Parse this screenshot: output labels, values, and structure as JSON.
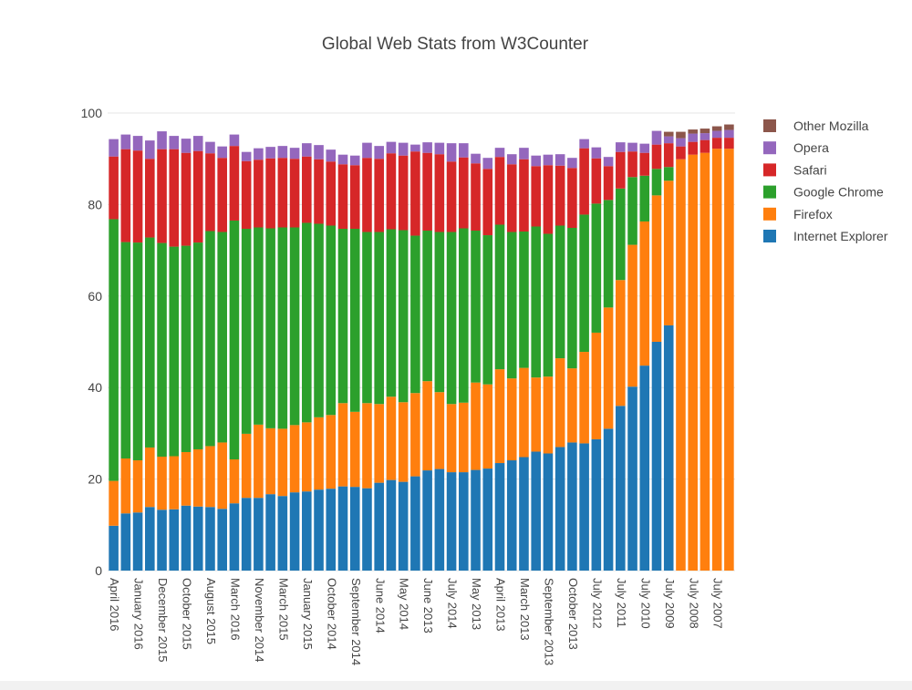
{
  "chart_data": {
    "type": "bar",
    "stacked": true,
    "title": "Global Web Stats from W3Counter",
    "xlabel": "",
    "ylabel": "",
    "ylim": [
      0,
      100
    ],
    "yticks": [
      0,
      20,
      40,
      60,
      80,
      100
    ],
    "grid": true,
    "legend_position": "top-right",
    "x_tick_labels": [
      "April 2016",
      "January 2016",
      "December 2015",
      "October 2015",
      "August 2015",
      "March 2016",
      "November 2014",
      "March 2015",
      "January 2015",
      "October 2014",
      "September 2014",
      "June 2014",
      "May 2014",
      "June 2013",
      "July 2014",
      "May 2013",
      "April 2013",
      "March 2013",
      "September 2013",
      "October 2013",
      "July 2012",
      "July 2011",
      "July 2010",
      "July 2009",
      "July 2008",
      "July 2007"
    ],
    "x_tick_positions": [
      0,
      2,
      4,
      6,
      8,
      10,
      12,
      14,
      16,
      18,
      20,
      22,
      24,
      26,
      28,
      30,
      32,
      34,
      36,
      38,
      40,
      42,
      44,
      46,
      48,
      50
    ],
    "bar_count": 52,
    "legend_order": [
      "Other Mozilla",
      "Opera",
      "Safari",
      "Google Chrome",
      "Firefox",
      "Internet Explorer"
    ],
    "series": [
      {
        "name": "Internet Explorer",
        "color": "#1f77b4",
        "values": [
          9.8,
          12.5,
          12.7,
          13.9,
          13.3,
          13.4,
          14.2,
          14.0,
          13.9,
          13.5,
          14.7,
          15.9,
          15.9,
          16.7,
          16.3,
          17.1,
          17.3,
          17.7,
          17.9,
          18.4,
          18.3,
          18.0,
          19.2,
          19.8,
          19.4,
          20.6,
          21.9,
          22.2,
          21.5,
          21.5,
          22.0,
          22.3,
          23.5,
          24.1,
          24.8,
          26.0,
          25.6,
          27.0,
          28.0,
          27.8,
          28.7,
          31.0,
          36.0,
          40.2,
          44.8,
          50.0,
          53.6,
          0,
          0,
          0,
          0,
          0
        ]
      },
      {
        "name": "Firefox",
        "color": "#ff7f0e",
        "values": [
          9.8,
          12.0,
          11.4,
          13.0,
          11.6,
          11.6,
          11.7,
          12.5,
          13.3,
          14.5,
          9.6,
          14.0,
          16.0,
          14.4,
          14.7,
          14.7,
          15.1,
          15.8,
          16.1,
          18.2,
          16.4,
          18.6,
          17.2,
          18.2,
          17.4,
          18.2,
          19.5,
          16.8,
          14.9,
          15.2,
          19.1,
          18.4,
          20.5,
          17.9,
          19.5,
          16.2,
          16.8,
          19.4,
          16.2,
          20.0,
          23.3,
          26.5,
          27.5,
          31.0,
          31.5,
          32.0,
          31.6,
          89.9,
          90.9,
          91.3,
          92.2,
          92.2
        ]
      },
      {
        "name": "Google Chrome",
        "color": "#2ca02c",
        "values": [
          57.2,
          47.3,
          47.6,
          45.9,
          46.7,
          45.8,
          45.1,
          45.2,
          47.0,
          46.0,
          52.2,
          44.8,
          43.1,
          43.7,
          44.0,
          43.2,
          43.6,
          42.3,
          41.4,
          38.1,
          40.0,
          37.4,
          37.6,
          36.6,
          37.6,
          34.4,
          32.9,
          35.0,
          37.6,
          38.1,
          33.2,
          32.6,
          31.6,
          32.0,
          29.8,
          33.0,
          31.2,
          29.0,
          30.7,
          30.0,
          28.2,
          23.5,
          20.0,
          14.8,
          10.0,
          5.8,
          3.0,
          0,
          0,
          0,
          0,
          0
        ]
      },
      {
        "name": "Safari",
        "color": "#d62728",
        "values": [
          13.7,
          20.3,
          20.1,
          17.2,
          20.5,
          21.3,
          20.3,
          20.0,
          17.0,
          16.2,
          16.3,
          14.8,
          14.8,
          15.3,
          15.2,
          15.0,
          14.5,
          14.1,
          14.0,
          14.1,
          13.9,
          16.2,
          16.0,
          16.6,
          16.3,
          18.4,
          17.0,
          17.0,
          15.4,
          15.5,
          14.7,
          14.5,
          14.8,
          14.8,
          15.8,
          13.2,
          15.0,
          13.1,
          13.1,
          14.5,
          9.9,
          7.4,
          8.0,
          5.6,
          5.0,
          5.3,
          5.2,
          2.8,
          2.8,
          2.8,
          2.4,
          2.4
        ]
      },
      {
        "name": "Opera",
        "color": "#9467bd",
        "values": [
          3.8,
          3.2,
          3.2,
          4.0,
          3.9,
          2.9,
          3.1,
          3.3,
          2.5,
          2.5,
          2.5,
          2.0,
          2.5,
          2.5,
          2.6,
          2.4,
          2.9,
          3.1,
          2.6,
          2.1,
          2.1,
          3.3,
          2.8,
          2.5,
          2.8,
          1.5,
          2.3,
          2.5,
          4.0,
          3.1,
          2.1,
          2.4,
          2.0,
          2.2,
          2.5,
          2.3,
          2.3,
          2.5,
          2.2,
          2.0,
          2.4,
          2.0,
          2.1,
          1.9,
          2.0,
          3.0,
          1.5,
          1.8,
          1.8,
          1.5,
          1.5,
          1.7
        ]
      },
      {
        "name": "Other Mozilla",
        "color": "#8c564b",
        "values": [
          0,
          0,
          0,
          0,
          0,
          0,
          0,
          0,
          0,
          0,
          0,
          0,
          0,
          0,
          0,
          0,
          0,
          0,
          0,
          0,
          0,
          0,
          0,
          0,
          0,
          0,
          0,
          0,
          0,
          0,
          0,
          0,
          0,
          0,
          0,
          0,
          0,
          0,
          0,
          0,
          0,
          0,
          0,
          0,
          0,
          0,
          1.0,
          1.4,
          0.9,
          1.0,
          1.0,
          1.2
        ]
      }
    ]
  }
}
